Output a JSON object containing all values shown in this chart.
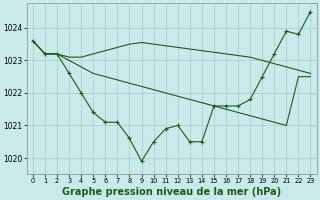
{
  "background_color": "#c8eaea",
  "grid_color": "#b0d4d4",
  "line_color": "#1a5c1a",
  "xlabel": "Graphe pression niveau de la mer (hPa)",
  "xlabel_fontsize": 7,
  "ylim": [
    1019.5,
    1024.75
  ],
  "xlim": [
    -0.5,
    23.5
  ],
  "yticks": [
    1020,
    1021,
    1022,
    1023,
    1024
  ],
  "xticks": [
    0,
    1,
    2,
    3,
    4,
    5,
    6,
    7,
    8,
    9,
    10,
    11,
    12,
    13,
    14,
    15,
    16,
    17,
    18,
    19,
    20,
    21,
    22,
    23
  ],
  "y_main": [
    1023.6,
    1023.2,
    1023.2,
    1022.6,
    1022.0,
    1021.4,
    1021.1,
    1021.1,
    1020.6,
    1019.9,
    1020.5,
    1020.9,
    1021.0,
    1020.5,
    1020.5,
    1021.6,
    1021.6,
    1021.6,
    1021.8,
    1022.5,
    1023.2,
    1023.9,
    1023.8,
    1024.5
  ],
  "y_upper": [
    1023.6,
    1023.2,
    1023.2,
    1023.1,
    1023.1,
    1023.2,
    1023.3,
    1023.4,
    1023.5,
    1023.55,
    1023.5,
    1023.45,
    1023.4,
    1023.35,
    1023.3,
    1023.25,
    1023.2,
    1023.15,
    1023.1,
    1023.0,
    1022.9,
    1022.8,
    1022.7,
    1022.6
  ],
  "y_lower": [
    1023.6,
    1023.2,
    1023.2,
    1023.0,
    1022.8,
    1022.6,
    1022.5,
    1022.4,
    1022.3,
    1022.2,
    1022.1,
    1022.0,
    1021.9,
    1021.8,
    1021.7,
    1021.6,
    1021.5,
    1021.4,
    1021.3,
    1021.2,
    1021.1,
    1021.0,
    1022.5,
    1022.5
  ]
}
